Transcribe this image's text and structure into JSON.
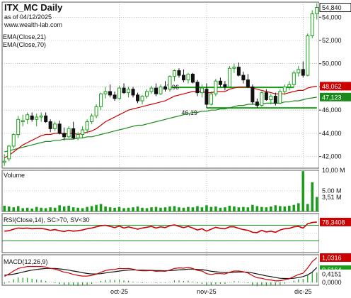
{
  "header": {
    "title": "ITX_MC Daily",
    "date": "as of 04/12/2025",
    "site": "www.wealth-lab.com"
  },
  "legend": {
    "ema21": "EMA(Close,21)",
    "ema70": "EMA(Close,70)"
  },
  "colors": {
    "up": "#1a9e1a",
    "down": "#111111",
    "ema21": "#cc0000",
    "ema70": "#1a8a1a",
    "volume": "#1a9e1a",
    "rsi": "#cc0000",
    "macd": "#cc0000",
    "signal": "#111111",
    "grid": "#9a9a9a"
  },
  "chart_data": [
    {
      "type": "candlestick",
      "title": "ITX_MC Daily",
      "ylim": [
        41.0,
        55.3
      ],
      "y_ticks": [
        "42,000",
        "44,000",
        "46,000",
        "48,000",
        "50,000",
        "52,000",
        "54,000"
      ],
      "x_ticks": [
        "oct-25",
        "nov-25",
        "dic-25"
      ],
      "price_label": "54,840",
      "ema21_label": "48,062",
      "ema70_label": "47,123",
      "annotations": [
        {
          "text": "47,96",
          "value": 47.96
        },
        {
          "text": "46,19",
          "value": 46.19
        }
      ],
      "candles": [
        [
          41.5,
          42.2,
          41.2,
          41.6
        ],
        [
          41.8,
          43.0,
          41.6,
          42.9
        ],
        [
          42.9,
          44.0,
          42.7,
          43.9
        ],
        [
          43.9,
          45.5,
          43.6,
          45.2
        ],
        [
          45.0,
          45.6,
          44.6,
          45.1
        ],
        [
          45.2,
          45.8,
          44.8,
          45.6
        ],
        [
          45.5,
          45.8,
          45.0,
          45.2
        ],
        [
          45.2,
          45.7,
          44.6,
          45.4
        ],
        [
          45.4,
          45.8,
          45.0,
          45.5
        ],
        [
          45.5,
          45.8,
          44.9,
          45.0
        ],
        [
          45.0,
          45.2,
          44.1,
          44.4
        ],
        [
          44.4,
          45.0,
          44.2,
          44.8
        ],
        [
          44.8,
          45.1,
          43.9,
          44.0
        ],
        [
          44.0,
          44.5,
          43.4,
          43.7
        ],
        [
          43.7,
          44.6,
          43.6,
          44.4
        ],
        [
          44.4,
          45.0,
          43.5,
          43.6
        ],
        [
          43.6,
          44.1,
          43.4,
          43.9
        ],
        [
          43.9,
          44.6,
          43.6,
          44.3
        ],
        [
          44.3,
          45.2,
          44.0,
          45.0
        ],
        [
          45.0,
          45.7,
          44.8,
          45.5
        ],
        [
          45.5,
          46.5,
          45.3,
          46.3
        ],
        [
          46.3,
          47.5,
          46.0,
          47.4
        ],
        [
          47.4,
          48.0,
          47.0,
          47.6
        ],
        [
          47.6,
          48.2,
          47.1,
          47.3
        ],
        [
          47.3,
          47.6,
          46.8,
          47.0
        ],
        [
          47.0,
          48.1,
          46.9,
          47.9
        ],
        [
          47.9,
          48.3,
          47.4,
          47.5
        ],
        [
          47.5,
          48.0,
          47.1,
          47.8
        ],
        [
          47.8,
          48.0,
          47.1,
          47.3
        ],
        [
          47.3,
          47.5,
          46.6,
          46.8
        ],
        [
          46.8,
          47.3,
          46.5,
          47.2
        ],
        [
          47.2,
          47.8,
          47.0,
          47.6
        ],
        [
          47.6,
          48.1,
          47.4,
          47.9
        ],
        [
          47.9,
          48.3,
          47.2,
          47.4
        ],
        [
          47.4,
          48.2,
          47.3,
          48.0
        ],
        [
          48.0,
          48.5,
          47.6,
          47.8
        ],
        [
          47.8,
          49.0,
          47.6,
          48.9
        ],
        [
          48.9,
          49.5,
          48.5,
          49.4
        ],
        [
          49.4,
          49.6,
          48.8,
          49.0
        ],
        [
          49.0,
          49.5,
          48.4,
          48.6
        ],
        [
          48.6,
          49.2,
          48.3,
          49.1
        ],
        [
          49.1,
          49.2,
          48.3,
          48.4
        ],
        [
          48.4,
          48.6,
          47.2,
          47.5
        ],
        [
          47.5,
          48.2,
          47.1,
          47.9
        ],
        [
          47.8,
          48.3,
          46.2,
          46.5
        ],
        [
          46.5,
          47.6,
          46.4,
          47.4
        ],
        [
          47.4,
          48.7,
          47.2,
          48.5
        ],
        [
          48.5,
          48.8,
          48.0,
          48.2
        ],
        [
          48.2,
          48.5,
          47.7,
          48.0
        ],
        [
          48.0,
          49.8,
          47.9,
          49.6
        ],
        [
          49.6,
          50.0,
          49.2,
          49.7
        ],
        [
          49.7,
          50.1,
          48.9,
          49.0
        ],
        [
          49.0,
          49.3,
          48.3,
          48.6
        ],
        [
          48.6,
          49.1,
          47.9,
          48.0
        ],
        [
          48.0,
          48.2,
          46.5,
          46.7
        ],
        [
          46.7,
          47.0,
          46.2,
          46.4
        ],
        [
          46.4,
          47.6,
          46.3,
          47.5
        ],
        [
          47.5,
          47.8,
          46.8,
          46.9
        ],
        [
          46.9,
          47.4,
          46.5,
          47.2
        ],
        [
          47.2,
          47.5,
          46.4,
          46.6
        ],
        [
          46.6,
          47.8,
          46.5,
          47.6
        ],
        [
          47.6,
          48.2,
          47.3,
          48.0
        ],
        [
          48.0,
          48.5,
          47.7,
          48.2
        ],
        [
          48.2,
          49.4,
          48.0,
          49.2
        ],
        [
          49.2,
          49.8,
          48.9,
          49.5
        ],
        [
          49.5,
          50.2,
          48.8,
          49.0
        ],
        [
          49.0,
          52.6,
          48.9,
          52.4
        ],
        [
          52.4,
          54.6,
          52.2,
          54.3
        ],
        [
          54.3,
          55.2,
          53.8,
          54.84
        ]
      ],
      "ema21": [
        41.9,
        42.1,
        42.4,
        42.7,
        43.0,
        43.2,
        43.4,
        43.6,
        43.8,
        43.9,
        43.9,
        44.0,
        44.0,
        43.9,
        44.0,
        44.0,
        43.9,
        44.0,
        44.1,
        44.2,
        44.4,
        44.7,
        45.0,
        45.2,
        45.4,
        45.6,
        45.8,
        46.0,
        46.1,
        46.2,
        46.3,
        46.4,
        46.5,
        46.6,
        46.7,
        46.8,
        47.0,
        47.2,
        47.3,
        47.4,
        47.5,
        47.6,
        47.6,
        47.6,
        47.5,
        47.5,
        47.6,
        47.6,
        47.6,
        47.8,
        47.9,
        48.0,
        48.0,
        48.0,
        47.9,
        47.8,
        47.7,
        47.6,
        47.5,
        47.4,
        47.4,
        47.4,
        47.5,
        47.6,
        47.7,
        47.7,
        47.9,
        48.0,
        48.06
      ],
      "ema70": [
        42.4,
        42.5,
        42.6,
        42.7,
        42.8,
        42.9,
        43.0,
        43.1,
        43.2,
        43.3,
        43.3,
        43.4,
        43.4,
        43.5,
        43.5,
        43.5,
        43.6,
        43.6,
        43.7,
        43.7,
        43.8,
        43.9,
        44.0,
        44.1,
        44.2,
        44.3,
        44.4,
        44.5,
        44.6,
        44.7,
        44.7,
        44.8,
        44.9,
        45.0,
        45.1,
        45.2,
        45.3,
        45.4,
        45.5,
        45.6,
        45.7,
        45.8,
        45.8,
        45.9,
        45.9,
        46.0,
        46.0,
        46.1,
        46.1,
        46.2,
        46.3,
        46.4,
        46.4,
        46.5,
        46.5,
        46.5,
        46.5,
        46.6,
        46.6,
        46.6,
        46.6,
        46.7,
        46.7,
        46.8,
        46.8,
        46.9,
        47.0,
        47.05,
        47.12
      ]
    },
    {
      "type": "bar",
      "title": "Volume",
      "ylim": [
        0,
        10.0
      ],
      "y_ticks": [
        "5,00 M",
        "10,00 M"
      ],
      "last_label": "3,51 M",
      "values": [
        1.4,
        1.2,
        1.0,
        1.3,
        0.8,
        0.9,
        0.7,
        1.1,
        0.9,
        0.8,
        1.0,
        0.9,
        1.5,
        1.2,
        1.4,
        1.0,
        0.9,
        0.8,
        1.1,
        1.3,
        1.6,
        1.8,
        1.2,
        1.0,
        0.9,
        1.1,
        0.8,
        0.9,
        1.0,
        1.2,
        0.9,
        0.8,
        1.0,
        1.1,
        0.9,
        1.0,
        1.2,
        1.3,
        1.0,
        0.9,
        1.1,
        1.0,
        1.3,
        1.0,
        1.5,
        1.1,
        1.2,
        0.9,
        1.0,
        1.4,
        1.2,
        1.0,
        1.1,
        1.0,
        1.6,
        1.3,
        1.1,
        1.0,
        1.2,
        1.5,
        1.3,
        1.2,
        1.4,
        1.6,
        2.0,
        9.8,
        1.8,
        7.1,
        3.51
      ]
    },
    {
      "type": "line",
      "title": "RSI(Close,14), SC>70, SV<30",
      "ylim": [
        0,
        100
      ],
      "levels": [
        70,
        30
      ],
      "last_label": "78,3408",
      "values": [
        55,
        56,
        60,
        63,
        62,
        63,
        61,
        62,
        62,
        60,
        57,
        59,
        56,
        54,
        57,
        55,
        56,
        58,
        61,
        63,
        66,
        69,
        70,
        67,
        64,
        68,
        63,
        66,
        63,
        60,
        63,
        65,
        67,
        63,
        66,
        64,
        69,
        71,
        67,
        64,
        67,
        63,
        58,
        61,
        55,
        60,
        65,
        62,
        61,
        66,
        66,
        62,
        59,
        57,
        52,
        51,
        57,
        53,
        55,
        52,
        58,
        61,
        62,
        66,
        67,
        63,
        74,
        77,
        78.3
      ]
    },
    {
      "type": "line",
      "title": "MACD(12,26,9)",
      "ylim": [
        -0.12,
        1.15
      ],
      "y_ticks": [
        "0,0000",
        "0,5000"
      ],
      "macd_label": "1,0316",
      "signal_label": "0,6164",
      "hist_label": "0,4151",
      "macd": [
        0.25,
        0.35,
        0.47,
        0.58,
        0.62,
        0.66,
        0.66,
        0.66,
        0.66,
        0.64,
        0.58,
        0.55,
        0.49,
        0.42,
        0.39,
        0.33,
        0.29,
        0.26,
        0.26,
        0.29,
        0.34,
        0.42,
        0.49,
        0.53,
        0.54,
        0.58,
        0.57,
        0.58,
        0.55,
        0.5,
        0.48,
        0.48,
        0.49,
        0.46,
        0.47,
        0.46,
        0.51,
        0.58,
        0.6,
        0.59,
        0.62,
        0.58,
        0.5,
        0.47,
        0.36,
        0.33,
        0.36,
        0.36,
        0.35,
        0.42,
        0.47,
        0.47,
        0.44,
        0.39,
        0.28,
        0.19,
        0.17,
        0.12,
        0.1,
        0.06,
        0.07,
        0.11,
        0.15,
        0.24,
        0.33,
        0.38,
        0.6,
        0.87,
        1.03
      ],
      "signal": [
        0.3,
        0.31,
        0.34,
        0.38,
        0.43,
        0.47,
        0.51,
        0.54,
        0.56,
        0.58,
        0.58,
        0.58,
        0.56,
        0.54,
        0.51,
        0.47,
        0.44,
        0.4,
        0.37,
        0.35,
        0.35,
        0.36,
        0.39,
        0.42,
        0.44,
        0.47,
        0.49,
        0.51,
        0.52,
        0.51,
        0.51,
        0.5,
        0.5,
        0.49,
        0.49,
        0.48,
        0.49,
        0.5,
        0.52,
        0.53,
        0.55,
        0.55,
        0.54,
        0.53,
        0.5,
        0.46,
        0.44,
        0.42,
        0.41,
        0.41,
        0.42,
        0.43,
        0.43,
        0.42,
        0.39,
        0.35,
        0.31,
        0.27,
        0.24,
        0.2,
        0.17,
        0.16,
        0.16,
        0.17,
        0.2,
        0.24,
        0.31,
        0.43,
        0.62
      ]
    }
  ]
}
